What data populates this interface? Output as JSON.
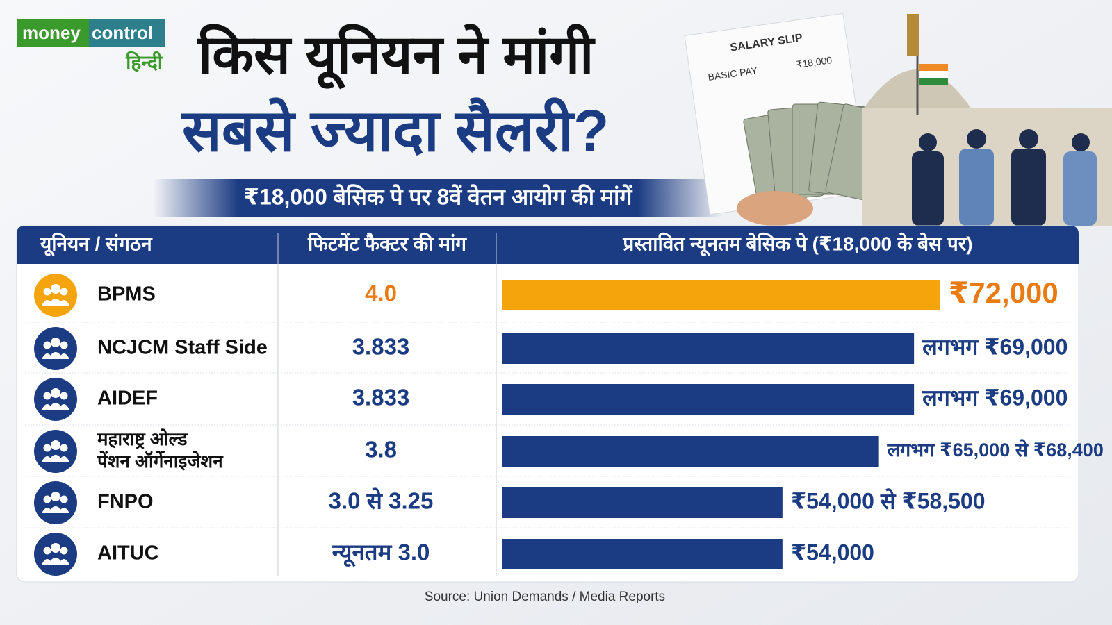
{
  "header": {
    "logo": {
      "part1": "money",
      "part2": "control",
      "language": "हिन्दी"
    },
    "title_line1": "किस यूनियन ने मांगी",
    "title_line2": "सबसे ज्यादा सैलरी?",
    "subtitle": "₹18,000 बेसिक पे पर 8वें वेतन आयोग की मांगें",
    "slip": {
      "heading": "SALARY SLIP",
      "row_label": "BASIC PAY",
      "row_value": "₹18,000"
    }
  },
  "table": {
    "columns": [
      "यूनियन / संगठन",
      "फिटमेंट फैक्टर की मांग",
      "प्रस्तावित न्यूनतम बेसिक पे (₹18,000 के बेस पर)"
    ],
    "bar_scale": [
      22000,
      72000
    ],
    "highlight_color": "#f5a40c",
    "bar_color": "#1b3b82",
    "rows": [
      {
        "name": [
          "BPMS"
        ],
        "factor": "4.0",
        "values": [
          72000
        ],
        "value_label": "₹72,000",
        "highlight": true
      },
      {
        "name": [
          "NCJCM Staff Side"
        ],
        "factor": "3.833",
        "values": [
          69000
        ],
        "value_label": "लगभग ₹69,000",
        "highlight": false
      },
      {
        "name": [
          "AIDEF"
        ],
        "factor": "3.833",
        "values": [
          69000
        ],
        "value_label": "लगभग ₹69,000",
        "highlight": false
      },
      {
        "name": [
          "महाराष्ट्र ओल्ड",
          "पेंशन ऑर्गेनाइजेशन"
        ],
        "factor": "3.8",
        "values": [
          65000,
          68400
        ],
        "value_label": "लगभग ₹65,000 से ₹68,400",
        "highlight": false
      },
      {
        "name": [
          "FNPO"
        ],
        "factor": "3.0 से 3.25",
        "values": [
          54000,
          58500
        ],
        "value_label": "₹54,000 से ₹58,500",
        "highlight": false
      },
      {
        "name": [
          "AITUC"
        ],
        "factor": "न्यूनतम 3.0",
        "values": [
          54000
        ],
        "value_label": "₹54,000",
        "highlight": false
      }
    ]
  },
  "source": "Source: Union Demands / Media Reports"
}
